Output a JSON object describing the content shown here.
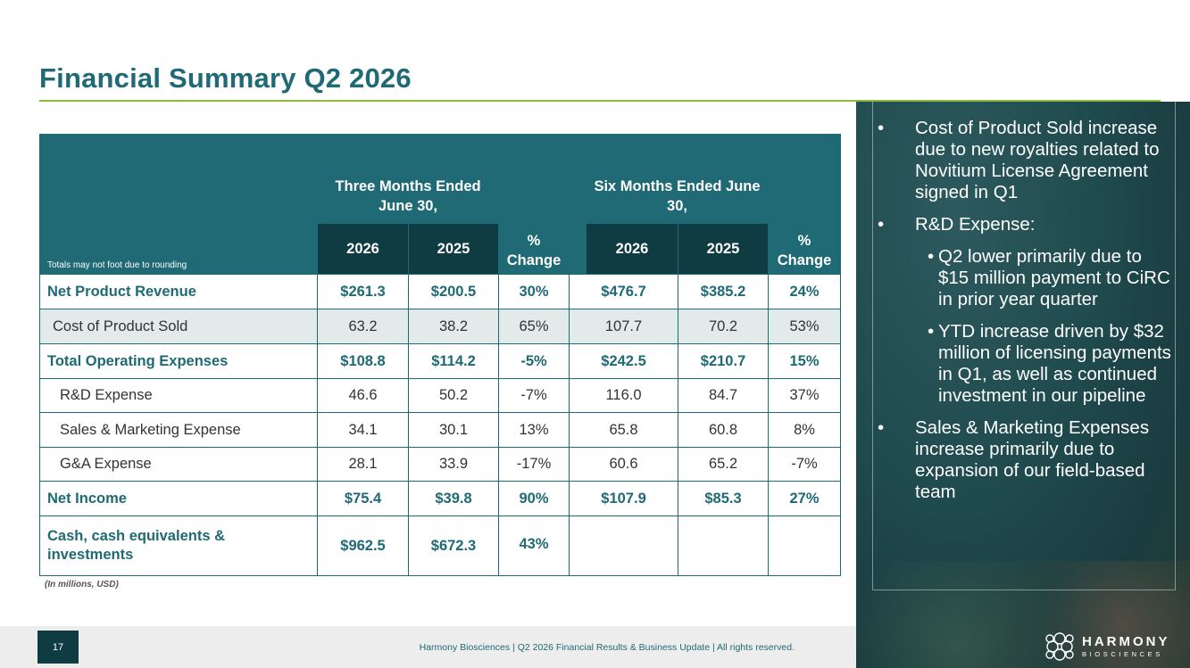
{
  "title": "Financial Summary Q2 2026",
  "table": {
    "note": "Totals may not foot due to rounding",
    "three_months": "Three Months Ended June 30,",
    "six_months": "Six Months Ended June 30,",
    "pct_change": "% Change",
    "years": [
      "2026",
      "2025"
    ],
    "rows": [
      {
        "label": "Net Product Revenue",
        "values": [
          "$261.3",
          "$200.5",
          "30%",
          "$476.7",
          "$385.2",
          "24%"
        ]
      },
      {
        "label": "Cost of Product Sold",
        "values": [
          "63.2",
          "38.2",
          "65%",
          "107.7",
          "70.2",
          "53%"
        ]
      },
      {
        "label": "Total Operating Expenses",
        "values": [
          "$108.8",
          "$114.2",
          "-5%",
          "$242.5",
          "$210.7",
          "15%"
        ]
      },
      {
        "label": "R&D Expense",
        "values": [
          "46.6",
          "50.2",
          "-7%",
          "116.0",
          "84.7",
          "37%"
        ]
      },
      {
        "label": "Sales & Marketing Expense",
        "values": [
          "34.1",
          "30.1",
          "13%",
          "65.8",
          "60.8",
          "8%"
        ]
      },
      {
        "label": "G&A Expense",
        "values": [
          "28.1",
          "33.9",
          "-17%",
          "60.6",
          "65.2",
          "-7%"
        ]
      },
      {
        "label": "Net Income",
        "values": [
          "$75.4",
          "$39.8",
          "90%",
          "$107.9",
          "$85.3",
          "27%"
        ]
      },
      {
        "label": "Cash, cash equivalents & investments",
        "values": [
          "$962.5",
          "$672.3",
          "43%"
        ]
      }
    ],
    "units": "(In millions, USD)"
  },
  "bullets": {
    "items": [
      "Cost of Product Sold increase due to new royalties related to Novitium License Agreement signed in Q1",
      "R&D Expense:",
      "Q2 lower primarily due to $15 million payment to CiRC in prior year quarter",
      "YTD increase driven by $32 million of licensing payments in Q1, as well as continued investment in our pipeline",
      "Sales & Marketing Expenses increase primarily due to expansion of our field-based team"
    ]
  },
  "footer": {
    "page": "17",
    "text": "Harmony Biosciences | Q2 2026 Financial Results & Business Update | All rights reserved.",
    "logo_main": "HARMONY",
    "logo_sub": "BIOSCIENCES"
  },
  "colors": {
    "teal": "#1f6a74",
    "dark_teal": "#0f3b42",
    "accent_green": "#8dbb3c"
  },
  "icons": {
    "logo": "harmony-knot-logo"
  }
}
